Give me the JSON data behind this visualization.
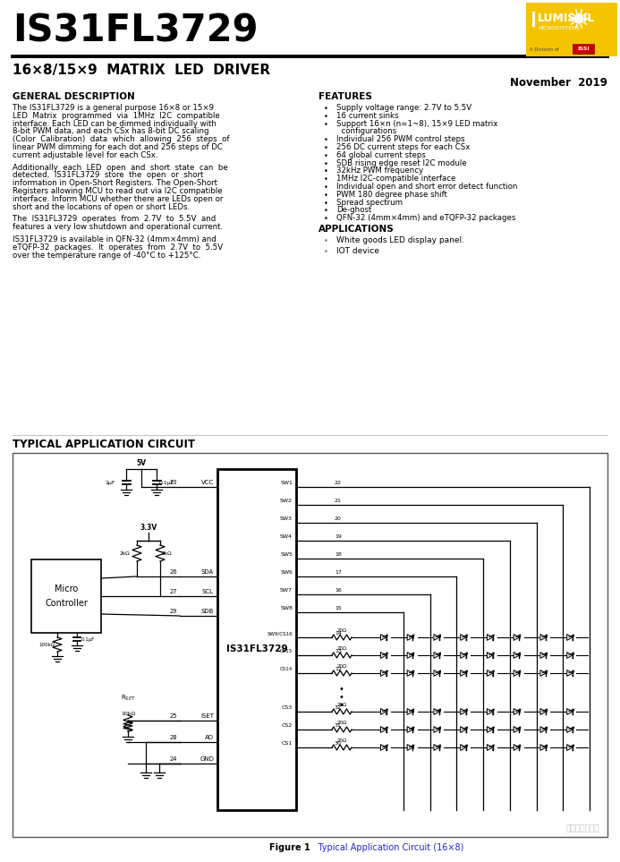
{
  "title": "IS31FL3729",
  "subtitle": "16×8/15×9  MATRIX  LED  DRIVER",
  "date": "November  2019",
  "bg_color": "#ffffff",
  "logo_bg": "#f5c400",
  "logo_text1": "LUMISSIL",
  "logo_text2": "MICROSYSTEMS",
  "logo_text3": "A Division of",
  "section_general": "GENERAL DESCRIPTION",
  "general_paragraphs": [
    "The IS31FL3729 is a general purpose 16×8 or 15×9\nLED  Matrix  programmed  via  1MHz  I2C  compatible\ninterface. Each LED can be dimmed individually with\n8-bit PWM data, and each CSx has 8-bit DC scaling\n(Color  Calibration)  data  which  allowing  256  steps  of\nlinear PWM dimming for each dot and 256 steps of DC\ncurrent adjustable level for each CSx.",
    "Additionally  each  LED  open  and  short  state  can  be\ndetected,  IS31FL3729  store  the  open  or  short\ninformation in Open-Short Registers. The Open-Short\nRegisters allowing MCU to read out via I2C compatible\ninterface. Inform MCU whether there are LEDs open or\nshort and the locations of open or short LEDs.",
    "The  IS31FL3729  operates  from  2.7V  to  5.5V  and\nfeatures a very low shutdown and operational current.",
    "IS31FL3729 is available in QFN-32 (4mm×4mm) and\neTQFP-32  packages.  It  operates  from  2.7V  to  5.5V\nover the temperature range of -40°C to +125°C."
  ],
  "section_features": "FEATURES",
  "features": [
    "Supply voltage range: 2.7V to 5.5V",
    "16 current sinks",
    "Support 16×n (n=1~8), 15×9 LED matrix\n  configurations",
    "Individual 256 PWM control steps",
    "256 DC current steps for each CSx",
    "64 global current steps",
    "SDB rising edge reset I2C module",
    "32kHz PWM frequency",
    "1MHz I2C-compatible interface",
    "Individual open and short error detect function",
    "PWM 180 degree phase shift",
    "Spread spectrum",
    "De-ghost",
    "QFN-32 (4mm×4mm) and eTQFP-32 packages"
  ],
  "section_applications": "APPLICATIONS",
  "applications": [
    "White goods LED display panel.",
    "IOT device"
  ],
  "section_circuit": "TYPICAL APPLICATION CIRCUIT",
  "figure_caption1": "Figure 1",
  "figure_caption2": "   Typical Application Circuit (16×8)",
  "watermark": "値一什么値得买"
}
